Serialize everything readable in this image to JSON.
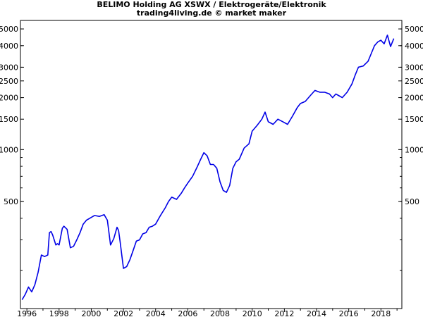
{
  "chart_data": {
    "type": "line",
    "title": "BELIMO Holding AG XSWX / Elektrogeräte/Elektronik",
    "subtitle": "trading4living.de © market maker",
    "xlabel": "",
    "ylabel": "",
    "y_scale": "log",
    "xlim": [
      1995.6,
      2019.3
    ],
    "ylim": [
      120,
      5600
    ],
    "x_ticks": [
      1996,
      1998,
      2000,
      2002,
      2004,
      2006,
      2008,
      2010,
      2012,
      2014,
      2016,
      2018
    ],
    "y_ticks": [
      500,
      1000,
      1500,
      2000,
      2500,
      3000,
      4000,
      5000
    ],
    "grid": false,
    "legend": "none",
    "line_color": "#0000e6",
    "series": [
      {
        "x": [
          1995.7,
          1995.9,
          1996.1,
          1996.3,
          1996.5,
          1996.7,
          1996.9,
          1997.1,
          1997.3,
          1997.4,
          1997.5,
          1997.6,
          1997.8,
          1997.9,
          1998.0,
          1998.2,
          1998.3,
          1998.5,
          1998.7,
          1998.9,
          1999.1,
          1999.3,
          1999.5,
          1999.7,
          1999.9,
          2000.2,
          2000.5,
          2000.8,
          2001.0,
          2001.2,
          2001.4,
          2001.6,
          2001.7,
          2001.8,
          2002.0,
          2002.2,
          2002.4,
          2002.6,
          2002.8,
          2003.0,
          2003.2,
          2003.4,
          2003.6,
          2003.8,
          2004.0,
          2004.3,
          2004.6,
          2004.8,
          2005.0,
          2005.3,
          2005.6,
          2005.8,
          2006.0,
          2006.3,
          2006.6,
          2006.8,
          2007.0,
          2007.2,
          2007.4,
          2007.6,
          2007.8,
          2008.0,
          2008.2,
          2008.4,
          2008.6,
          2008.8,
          2009.0,
          2009.2,
          2009.5,
          2009.8,
          2010.0,
          2010.3,
          2010.6,
          2010.8,
          2011.0,
          2011.3,
          2011.6,
          2011.9,
          2012.2,
          2012.5,
          2012.8,
          2013.0,
          2013.3,
          2013.6,
          2013.9,
          2014.2,
          2014.5,
          2014.8,
          2015.0,
          2015.2,
          2015.4,
          2015.6,
          2015.9,
          2016.2,
          2016.4,
          2016.6,
          2016.9,
          2017.2,
          2017.4,
          2017.6,
          2017.8,
          2018.0,
          2018.2,
          2018.4,
          2018.6,
          2018.8
        ],
        "y": [
          135,
          145,
          160,
          150,
          165,
          195,
          245,
          240,
          245,
          330,
          335,
          320,
          280,
          285,
          280,
          350,
          360,
          345,
          270,
          275,
          300,
          330,
          370,
          390,
          400,
          415,
          410,
          420,
          390,
          280,
          305,
          355,
          340,
          290,
          205,
          210,
          230,
          260,
          295,
          300,
          325,
          330,
          355,
          360,
          370,
          415,
          460,
          500,
          530,
          515,
          560,
          600,
          640,
          700,
          800,
          880,
          960,
          920,
          820,
          820,
          780,
          650,
          580,
          565,
          620,
          780,
          850,
          880,
          1020,
          1080,
          1280,
          1380,
          1500,
          1650,
          1450,
          1400,
          1500,
          1450,
          1400,
          1560,
          1750,
          1850,
          1900,
          2050,
          2200,
          2150,
          2150,
          2100,
          2000,
          2100,
          2050,
          2000,
          2150,
          2400,
          2700,
          3000,
          3050,
          3250,
          3600,
          4000,
          4200,
          4300,
          4100,
          4600,
          3950,
          4400
        ]
      }
    ]
  }
}
